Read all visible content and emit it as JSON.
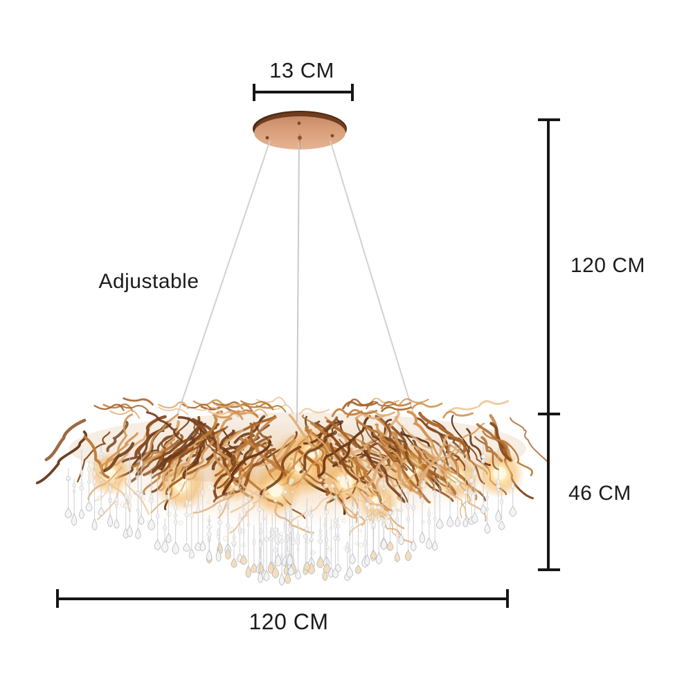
{
  "figure": {
    "subject": "gold branch crystal chandelier with dimension annotations"
  },
  "annotations": {
    "canopy_width": "13 CM",
    "suspension_height": "120 CM",
    "body_height": "46 CM",
    "body_width": "120 CM",
    "adjustable": "Adjustable"
  },
  "colors": {
    "background": "#ffffff",
    "dimension_line": "#161616",
    "label_text": "#1b1b1b",
    "canopy_face": "#d9a07c",
    "canopy_rim": "#4c2a15",
    "branch_copper": "#b06a2f",
    "branch_dark": "#6f3a17",
    "branch_light": "#edc79c",
    "glow": "#f1a73e",
    "crystal": "#f4f4f7",
    "cable": "#cfcfcf"
  }
}
